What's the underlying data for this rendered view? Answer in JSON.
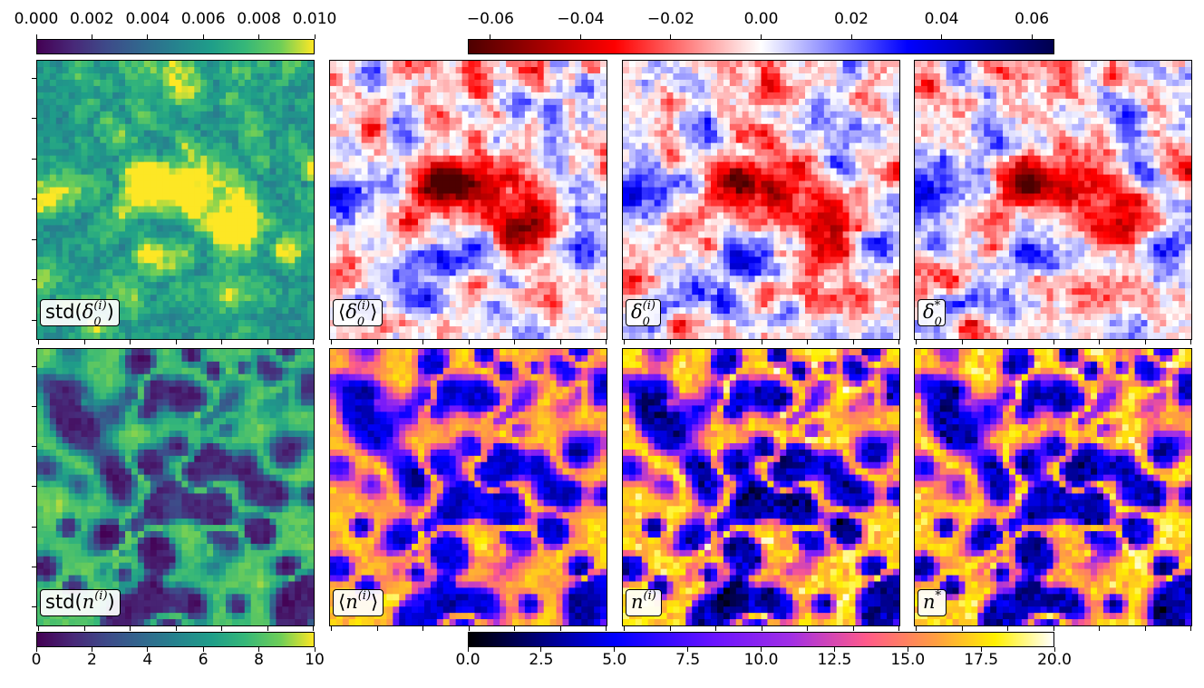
{
  "chart_data": {
    "type": "heatmap",
    "panels": [
      {
        "id": "std-delta",
        "label": {
          "prefix": "std(",
          "sym": "δ",
          "sub": "0",
          "sup": "(i)",
          "suffix": ")"
        },
        "colormap": "viridis",
        "clim": [
          0,
          0.01
        ],
        "pattern": "delta-std"
      },
      {
        "id": "mean-delta",
        "label": {
          "prefix": "⟨",
          "sym": "δ",
          "sub": "0",
          "sup": "(i)",
          "suffix": "⟩"
        },
        "colormap": "seismic",
        "clim": [
          -0.065,
          0.065
        ],
        "pattern": "delta"
      },
      {
        "id": "delta-sample",
        "label": {
          "prefix": "",
          "sym": "δ",
          "sub": "0",
          "sup": "(i)",
          "suffix": ""
        },
        "colormap": "seismic",
        "clim": [
          -0.065,
          0.065
        ],
        "pattern": "delta"
      },
      {
        "id": "delta-true",
        "label": {
          "prefix": "",
          "sym": "δ",
          "sub": "0",
          "sup": "*",
          "suffix": ""
        },
        "colormap": "seismic",
        "clim": [
          -0.065,
          0.065
        ],
        "pattern": "delta"
      },
      {
        "id": "std-n",
        "label": {
          "prefix": "std(",
          "sym": "n",
          "sub": "",
          "sup": "(i)",
          "suffix": ")"
        },
        "colormap": "viridis",
        "clim": [
          0,
          10
        ],
        "pattern": "n-std"
      },
      {
        "id": "mean-n",
        "label": {
          "prefix": "⟨",
          "sym": "n",
          "sub": "",
          "sup": "(i)",
          "suffix": "⟩"
        },
        "colormap": "gnuplot2",
        "clim": [
          0,
          20
        ],
        "pattern": "n-mean"
      },
      {
        "id": "n-sample",
        "label": {
          "prefix": "",
          "sym": "n",
          "sub": "",
          "sup": "(i)",
          "suffix": ""
        },
        "colormap": "gnuplot2",
        "clim": [
          0,
          20
        ],
        "pattern": "n"
      },
      {
        "id": "n-true",
        "label": {
          "prefix": "",
          "sym": "n",
          "sub": "",
          "sup": "*",
          "suffix": ""
        },
        "colormap": "gnuplot2",
        "clim": [
          0,
          20
        ],
        "pattern": "n"
      }
    ],
    "colorbars": [
      {
        "id": "cbar-std-delta",
        "colormap": "viridis",
        "range": [
          0.0,
          0.01
        ],
        "ticks": [
          0,
          0.002,
          0.004,
          0.006,
          0.008,
          0.01
        ],
        "tick_labels": [
          "0.000",
          "0.002",
          "0.004",
          "0.006",
          "0.008",
          "0.010"
        ],
        "placement": "top-left"
      },
      {
        "id": "cbar-delta",
        "colormap": "seismic",
        "range": [
          -0.065,
          0.065
        ],
        "ticks": [
          -0.06,
          -0.04,
          -0.02,
          0.0,
          0.02,
          0.04,
          0.06
        ],
        "tick_labels": [
          "−0.06",
          "−0.04",
          "−0.02",
          "0.00",
          "0.02",
          "0.04",
          "0.06"
        ],
        "placement": "top-right"
      },
      {
        "id": "cbar-std-n",
        "colormap": "viridis",
        "range": [
          0,
          10
        ],
        "ticks": [
          0,
          2,
          4,
          6,
          8,
          10
        ],
        "tick_labels": [
          "0",
          "2",
          "4",
          "6",
          "8",
          "10"
        ],
        "placement": "bottom-left"
      },
      {
        "id": "cbar-n",
        "colormap": "gnuplot2",
        "range": [
          0,
          20
        ],
        "ticks": [
          0,
          2.5,
          5,
          7.5,
          10,
          12.5,
          15,
          17.5,
          20
        ],
        "tick_labels": [
          "0.0",
          "2.5",
          "5.0",
          "7.5",
          "10.0",
          "12.5",
          "15.0",
          "17.5",
          "20.0"
        ],
        "placement": "bottom-right"
      }
    ]
  }
}
